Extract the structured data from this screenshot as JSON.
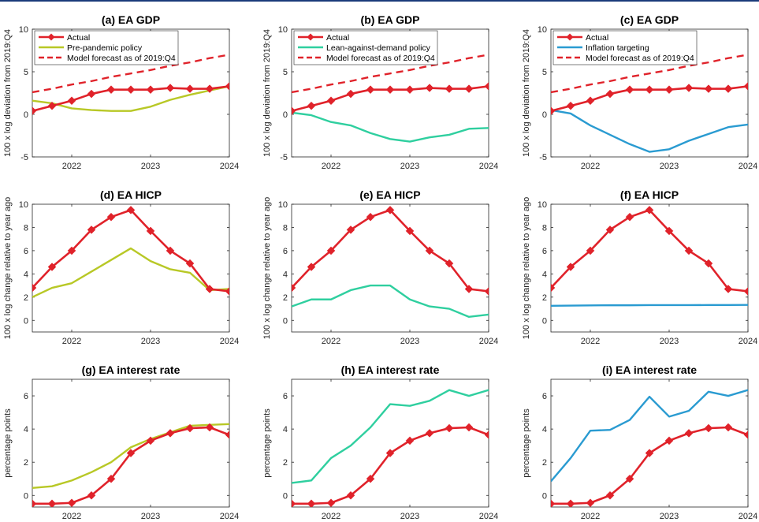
{
  "colors": {
    "actual": "#e0222a",
    "forecast": "#e0222a",
    "prepandemic": "#b8c826",
    "lean": "#2fcf9f",
    "inflation": "#2a9bd1"
  },
  "chart_data": [
    {
      "type": "line",
      "title": "(a) EA GDP",
      "ylabel": "100 x log deviation from 2019:Q4",
      "ylim": [
        -5,
        10
      ],
      "yticks": [
        -5,
        0,
        5,
        10
      ],
      "xlim": [
        2021.5,
        2024
      ],
      "xticks": [
        2022,
        2023,
        2024
      ],
      "legend": "top-left",
      "x": [
        2021.5,
        2021.75,
        2022,
        2022.25,
        2022.5,
        2022.75,
        2023,
        2023.25,
        2023.5,
        2023.75,
        2024
      ],
      "series": [
        {
          "name": "Actual",
          "color_key": "actual",
          "style": "solid-diamond",
          "values": [
            0.4,
            1.0,
            1.6,
            2.4,
            2.9,
            2.9,
            2.9,
            3.1,
            3.0,
            3.0,
            3.3
          ]
        },
        {
          "name": "Pre-pandemic policy",
          "color_key": "prepandemic",
          "style": "solid",
          "values": [
            1.6,
            1.3,
            0.7,
            0.5,
            0.4,
            0.4,
            0.9,
            1.7,
            2.3,
            2.8,
            3.3
          ]
        },
        {
          "name": "Model forecast as of 2019:Q4",
          "color_key": "forecast",
          "style": "dashed",
          "values": [
            2.6,
            3.0,
            3.5,
            3.9,
            4.4,
            4.8,
            5.2,
            5.7,
            6.1,
            6.6,
            7.0
          ]
        }
      ]
    },
    {
      "type": "line",
      "title": "(b) EA GDP",
      "ylabel": "100 x log deviation from 2019:Q4",
      "ylim": [
        -5,
        10
      ],
      "yticks": [
        -5,
        0,
        5,
        10
      ],
      "xlim": [
        2021.5,
        2024
      ],
      "xticks": [
        2022,
        2023,
        2024
      ],
      "legend": "top-left",
      "x": [
        2021.5,
        2021.75,
        2022,
        2022.25,
        2022.5,
        2022.75,
        2023,
        2023.25,
        2023.5,
        2023.75,
        2024
      ],
      "series": [
        {
          "name": "Actual",
          "color_key": "actual",
          "style": "solid-diamond",
          "values": [
            0.4,
            1.0,
            1.6,
            2.4,
            2.9,
            2.9,
            2.9,
            3.1,
            3.0,
            3.0,
            3.3
          ]
        },
        {
          "name": "Lean-against-demand policy",
          "color_key": "lean",
          "style": "solid",
          "values": [
            0.2,
            -0.1,
            -0.9,
            -1.3,
            -2.2,
            -2.9,
            -3.2,
            -2.7,
            -2.4,
            -1.7,
            -1.6
          ]
        },
        {
          "name": "Model forecast as of 2019:Q4",
          "color_key": "forecast",
          "style": "dashed",
          "values": [
            2.6,
            3.0,
            3.5,
            3.9,
            4.4,
            4.8,
            5.2,
            5.7,
            6.1,
            6.6,
            7.0
          ]
        }
      ]
    },
    {
      "type": "line",
      "title": "(c) EA GDP",
      "ylabel": "100 x log deviation from 2019:Q4",
      "ylim": [
        -5,
        10
      ],
      "yticks": [
        -5,
        0,
        5,
        10
      ],
      "xlim": [
        2021.5,
        2024
      ],
      "xticks": [
        2022,
        2023,
        2024
      ],
      "legend": "top-left",
      "x": [
        2021.5,
        2021.75,
        2022,
        2022.25,
        2022.5,
        2022.75,
        2023,
        2023.25,
        2023.5,
        2023.75,
        2024
      ],
      "series": [
        {
          "name": "Actual",
          "color_key": "actual",
          "style": "solid-diamond",
          "values": [
            0.4,
            1.0,
            1.6,
            2.4,
            2.9,
            2.9,
            2.9,
            3.1,
            3.0,
            3.0,
            3.3
          ]
        },
        {
          "name": "Inflation targeting",
          "color_key": "inflation",
          "style": "solid",
          "values": [
            0.5,
            0.1,
            -1.3,
            -2.4,
            -3.5,
            -4.4,
            -4.1,
            -3.1,
            -2.3,
            -1.5,
            -1.2
          ]
        },
        {
          "name": "Model forecast as of 2019:Q4",
          "color_key": "forecast",
          "style": "dashed",
          "values": [
            2.6,
            3.0,
            3.5,
            3.9,
            4.4,
            4.8,
            5.2,
            5.7,
            6.1,
            6.6,
            7.0
          ]
        }
      ]
    },
    {
      "type": "line",
      "title": "(d) EA HICP",
      "ylabel": "100 x log change relative to year ago",
      "ylim": [
        -1,
        10
      ],
      "yticks": [
        0,
        2,
        4,
        6,
        8,
        10
      ],
      "xlim": [
        2021.5,
        2024
      ],
      "xticks": [
        2022,
        2023,
        2024
      ],
      "legend": "none",
      "x": [
        2021.5,
        2021.75,
        2022,
        2022.25,
        2022.5,
        2022.75,
        2023,
        2023.25,
        2023.5,
        2023.75,
        2024
      ],
      "series": [
        {
          "name": "Actual",
          "color_key": "actual",
          "style": "solid-diamond",
          "values": [
            2.8,
            4.6,
            6.0,
            7.8,
            8.9,
            9.5,
            7.7,
            6.0,
            4.9,
            2.7,
            2.5
          ]
        },
        {
          "name": "Pre-pandemic policy",
          "color_key": "prepandemic",
          "style": "solid",
          "values": [
            2.0,
            2.8,
            3.2,
            4.2,
            5.2,
            6.2,
            5.1,
            4.4,
            4.1,
            2.6,
            2.7
          ]
        }
      ]
    },
    {
      "type": "line",
      "title": "(e) EA HICP",
      "ylabel": "100 x log change relative to year ago",
      "ylim": [
        -1,
        10
      ],
      "yticks": [
        0,
        2,
        4,
        6,
        8,
        10
      ],
      "xlim": [
        2021.5,
        2024
      ],
      "xticks": [
        2022,
        2023,
        2024
      ],
      "legend": "none",
      "x": [
        2021.5,
        2021.75,
        2022,
        2022.25,
        2022.5,
        2022.75,
        2023,
        2023.25,
        2023.5,
        2023.75,
        2024
      ],
      "series": [
        {
          "name": "Actual",
          "color_key": "actual",
          "style": "solid-diamond",
          "values": [
            2.8,
            4.6,
            6.0,
            7.8,
            8.9,
            9.5,
            7.7,
            6.0,
            4.9,
            2.7,
            2.5
          ]
        },
        {
          "name": "Lean-against-demand policy",
          "color_key": "lean",
          "style": "solid",
          "values": [
            1.2,
            1.8,
            1.8,
            2.6,
            3.0,
            3.0,
            1.8,
            1.2,
            1.0,
            0.3,
            0.5
          ]
        }
      ]
    },
    {
      "type": "line",
      "title": "(f) EA HICP",
      "ylabel": "100 x log change relative to year ago",
      "ylim": [
        -1,
        10
      ],
      "yticks": [
        0,
        2,
        4,
        6,
        8,
        10
      ],
      "xlim": [
        2021.5,
        2024
      ],
      "xticks": [
        2022,
        2023,
        2024
      ],
      "legend": "none",
      "x": [
        2021.5,
        2021.75,
        2022,
        2022.25,
        2022.5,
        2022.75,
        2023,
        2023.25,
        2023.5,
        2023.75,
        2024
      ],
      "series": [
        {
          "name": "Actual",
          "color_key": "actual",
          "style": "solid-diamond",
          "values": [
            2.8,
            4.6,
            6.0,
            7.8,
            8.9,
            9.5,
            7.7,
            6.0,
            4.9,
            2.7,
            2.5
          ]
        },
        {
          "name": "Inflation targeting",
          "color_key": "inflation",
          "style": "solid",
          "values": [
            1.25,
            1.27,
            1.29,
            1.3,
            1.3,
            1.31,
            1.31,
            1.31,
            1.32,
            1.32,
            1.33
          ]
        }
      ]
    },
    {
      "type": "line",
      "title": "(g) EA interest rate",
      "ylabel": "percentage points",
      "ylim": [
        -0.7,
        7
      ],
      "yticks": [
        0,
        2,
        4,
        6
      ],
      "xlim": [
        2021.5,
        2024
      ],
      "xticks": [
        2022,
        2023,
        2024
      ],
      "legend": "none",
      "x": [
        2021.5,
        2021.75,
        2022,
        2022.25,
        2022.5,
        2022.75,
        2023,
        2023.25,
        2023.5,
        2023.75,
        2024
      ],
      "series": [
        {
          "name": "Actual",
          "color_key": "actual",
          "style": "solid-diamond",
          "values": [
            -0.5,
            -0.5,
            -0.45,
            0.0,
            1.0,
            2.55,
            3.3,
            3.75,
            4.05,
            4.1,
            3.65
          ]
        },
        {
          "name": "Pre-pandemic policy",
          "color_key": "prepandemic",
          "style": "solid",
          "values": [
            0.45,
            0.55,
            0.9,
            1.4,
            2.0,
            2.9,
            3.4,
            3.8,
            4.2,
            4.25,
            4.3
          ]
        }
      ]
    },
    {
      "type": "line",
      "title": "(h) EA interest rate",
      "ylabel": "percentage points",
      "ylim": [
        -0.7,
        7
      ],
      "yticks": [
        0,
        2,
        4,
        6
      ],
      "xlim": [
        2021.5,
        2024
      ],
      "xticks": [
        2022,
        2023,
        2024
      ],
      "legend": "none",
      "x": [
        2021.5,
        2021.75,
        2022,
        2022.25,
        2022.5,
        2022.75,
        2023,
        2023.25,
        2023.5,
        2023.75,
        2024
      ],
      "series": [
        {
          "name": "Actual",
          "color_key": "actual",
          "style": "solid-diamond",
          "values": [
            -0.5,
            -0.5,
            -0.45,
            0.0,
            1.0,
            2.55,
            3.3,
            3.75,
            4.05,
            4.1,
            3.65
          ]
        },
        {
          "name": "Lean-against-demand policy",
          "color_key": "lean",
          "style": "solid",
          "values": [
            0.75,
            0.9,
            2.25,
            3.0,
            4.1,
            5.5,
            5.4,
            5.7,
            6.35,
            6.0,
            6.35
          ]
        }
      ]
    },
    {
      "type": "line",
      "title": "(i) EA interest rate",
      "ylabel": "percentage points",
      "ylim": [
        -0.7,
        7
      ],
      "yticks": [
        0,
        2,
        4,
        6
      ],
      "xlim": [
        2021.5,
        2024
      ],
      "xticks": [
        2022,
        2023,
        2024
      ],
      "legend": "none",
      "x": [
        2021.5,
        2021.75,
        2022,
        2022.25,
        2022.5,
        2022.75,
        2023,
        2023.25,
        2023.5,
        2023.75,
        2024
      ],
      "series": [
        {
          "name": "Actual",
          "color_key": "actual",
          "style": "solid-diamond",
          "values": [
            -0.5,
            -0.5,
            -0.45,
            0.0,
            1.0,
            2.55,
            3.3,
            3.75,
            4.05,
            4.1,
            3.65
          ]
        },
        {
          "name": "Inflation targeting",
          "color_key": "inflation",
          "style": "solid",
          "values": [
            0.85,
            2.25,
            3.9,
            3.95,
            4.55,
            5.95,
            4.75,
            5.1,
            6.25,
            6.0,
            6.35
          ]
        }
      ]
    }
  ]
}
